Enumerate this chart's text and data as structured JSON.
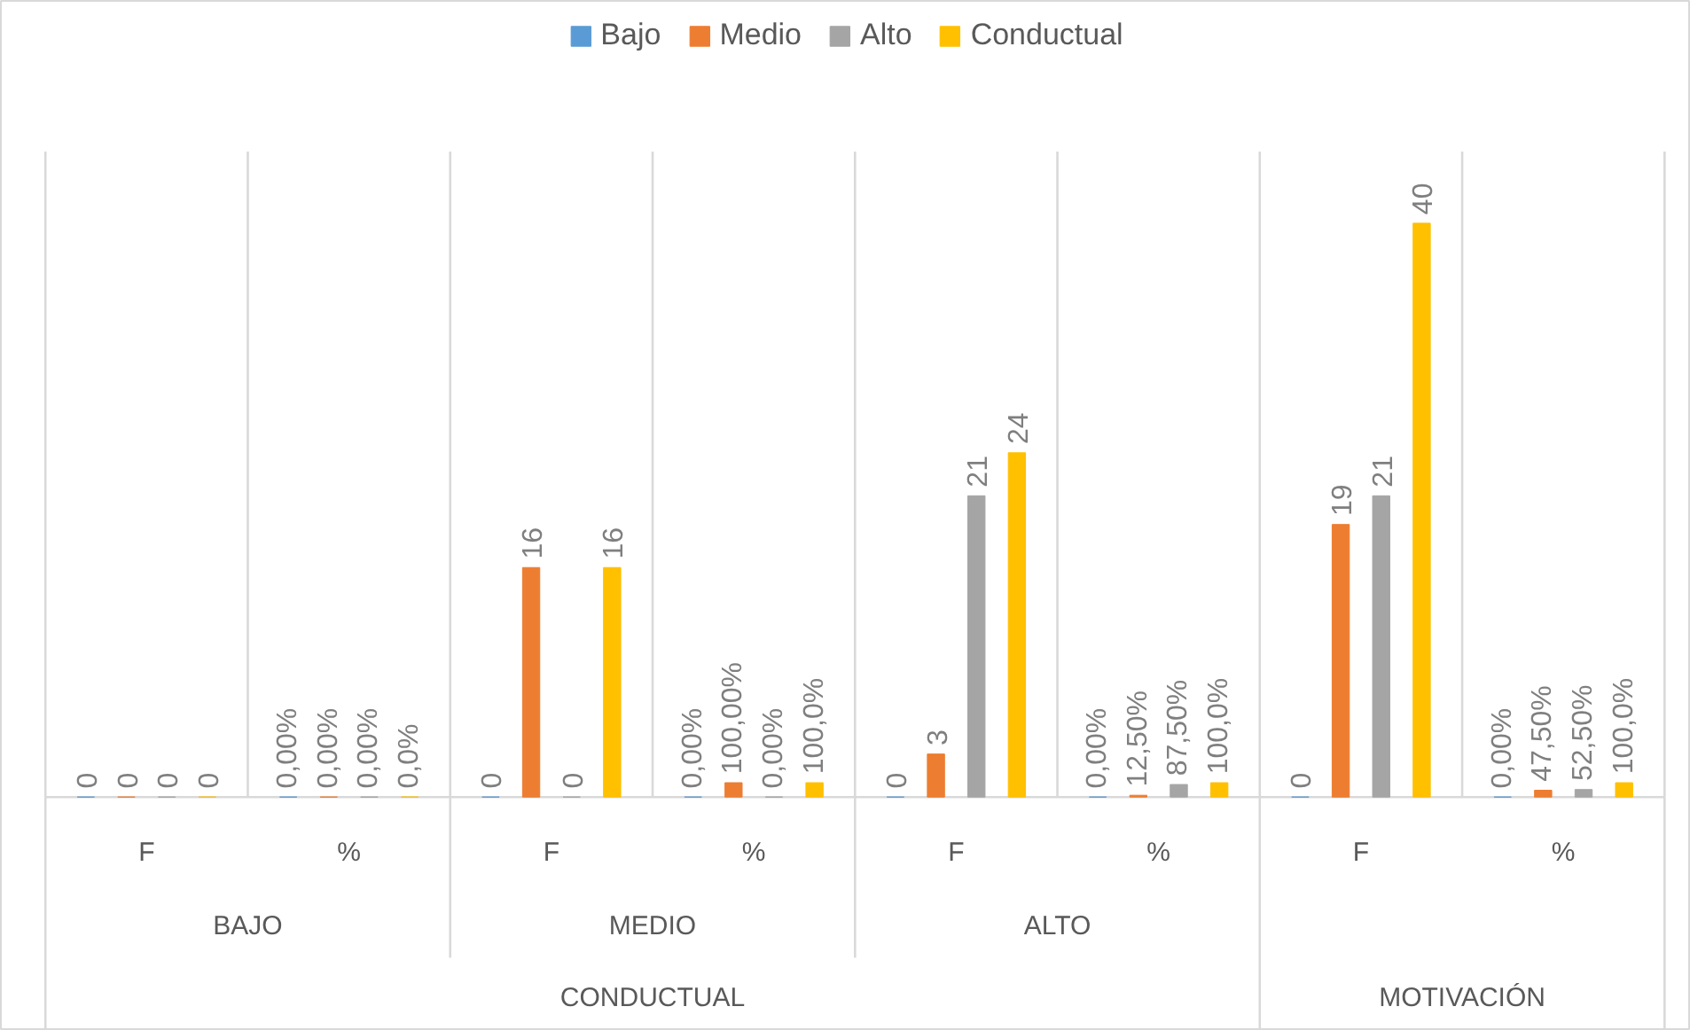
{
  "chart_data": {
    "type": "bar",
    "categories": [
      "F",
      "%",
      "F",
      "%",
      "F",
      "%",
      "F",
      "%"
    ],
    "series": [
      {
        "name": "Bajo",
        "color": "#5b9bd5",
        "values": [
          0,
          0,
          0,
          0,
          0,
          0,
          0,
          0
        ],
        "value_labels": [
          "0",
          "0,00%",
          "0",
          "0,00%",
          "0",
          "0,00%",
          "0",
          "0,00%"
        ]
      },
      {
        "name": "Medio",
        "color": "#ed7d31",
        "values": [
          0,
          0,
          16,
          1,
          3,
          0.125,
          19,
          0.475
        ],
        "value_labels": [
          "0",
          "0,00%",
          "16",
          "100,00%",
          "3",
          "12,50%",
          "19",
          "47,50%"
        ]
      },
      {
        "name": "Alto",
        "color": "#a5a5a5",
        "values": [
          0,
          0,
          0,
          0,
          21,
          0.875,
          21,
          0.525
        ],
        "value_labels": [
          "0",
          "0,00%",
          "0",
          "0,00%",
          "21",
          "87,50%",
          "21",
          "52,50%"
        ]
      },
      {
        "name": "Conductual",
        "color": "#ffc000",
        "values": [
          0,
          0,
          16,
          1,
          24,
          1,
          40,
          1
        ],
        "value_labels": [
          "0",
          "0,0%",
          "16",
          "100,0%",
          "24",
          "100,0%",
          "40",
          "100,0%"
        ]
      }
    ],
    "annotations": [
      "BAJO",
      "MEDIO",
      "ALTO",
      "CONDUCTUAL",
      "MOTIVACIÓN"
    ],
    "grid": "x",
    "legend": "top"
  }
}
